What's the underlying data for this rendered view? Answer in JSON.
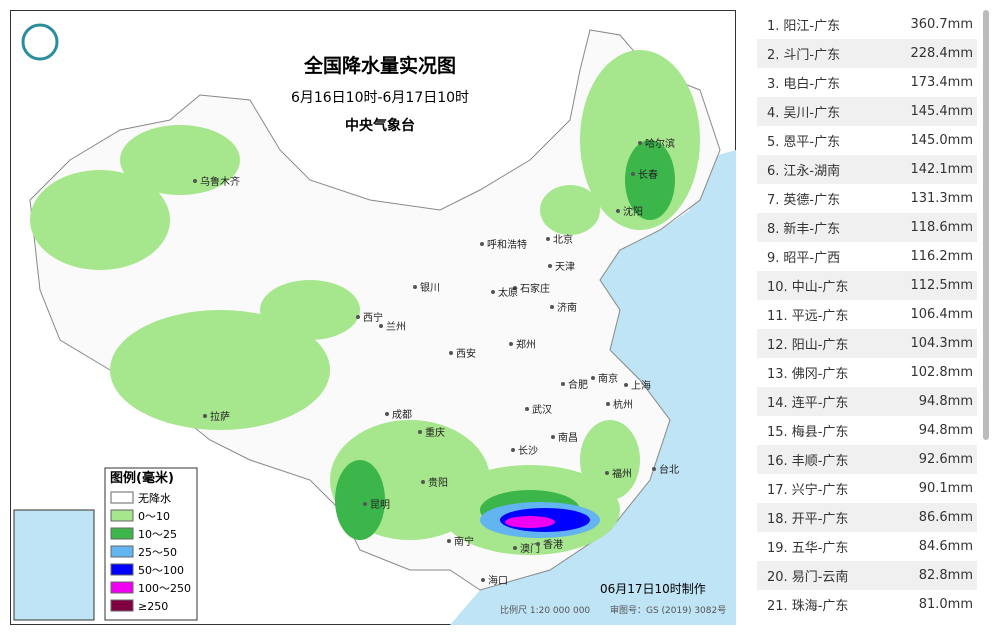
{
  "map": {
    "title": "全国降水量实况图",
    "subtitle": "6月16日10时-6月17日10时",
    "agency": "中央气象台",
    "cities": [
      "乌鲁木齐",
      "哈尔滨",
      "长春",
      "沈阳",
      "呼和浩特",
      "北京",
      "天津",
      "石家庄",
      "太原",
      "银川",
      "西宁",
      "兰州",
      "济南",
      "西安",
      "郑州",
      "合肥",
      "南京",
      "上海",
      "杭州",
      "拉萨",
      "成都",
      "重庆",
      "武汉",
      "南昌",
      "长沙",
      "福州",
      "台北",
      "贵阳",
      "昆明",
      "南宁",
      "澳门",
      "香港",
      "海口"
    ],
    "legend": {
      "title": "图例(毫米)",
      "items": [
        {
          "label": "无降水",
          "color": "#ffffff"
        },
        {
          "label": "0～10",
          "color": "#a6e68c"
        },
        {
          "label": "10～25",
          "color": "#3cb54a"
        },
        {
          "label": "25～50",
          "color": "#62b5f0"
        },
        {
          "label": "50～100",
          "color": "#0000ff"
        },
        {
          "label": "100～250",
          "color": "#f000f0"
        },
        {
          "label": "≥250",
          "color": "#800040"
        }
      ]
    },
    "made": "06月17日10时制作",
    "scale": "比例尺 1:20 000 000",
    "approval": "审图号：GS (2019) 3082号"
  },
  "ranking": {
    "rows": [
      [
        "1.",
        "阳江-广东",
        "360.7mm"
      ],
      [
        "2.",
        "斗门-广东",
        "228.4mm"
      ],
      [
        "3.",
        "电白-广东",
        "173.4mm"
      ],
      [
        "4.",
        "吴川-广东",
        "145.4mm"
      ],
      [
        "5.",
        "恩平-广东",
        "145.0mm"
      ],
      [
        "6.",
        "江永-湖南",
        "142.1mm"
      ],
      [
        "7.",
        "英德-广东",
        "131.3mm"
      ],
      [
        "8.",
        "新丰-广东",
        "118.6mm"
      ],
      [
        "9.",
        "昭平-广西",
        "116.2mm"
      ],
      [
        "10.",
        "中山-广东",
        "112.5mm"
      ],
      [
        "11.",
        "平远-广东",
        "106.4mm"
      ],
      [
        "12.",
        "阳山-广东",
        "104.3mm"
      ],
      [
        "13.",
        "佛冈-广东",
        "102.8mm"
      ],
      [
        "14.",
        "连平-广东",
        "94.8mm"
      ],
      [
        "15.",
        "梅县-广东",
        "94.8mm"
      ],
      [
        "16.",
        "丰顺-广东",
        "92.6mm"
      ],
      [
        "17.",
        "兴宁-广东",
        "90.1mm"
      ],
      [
        "18.",
        "开平-广东",
        "86.6mm"
      ],
      [
        "19.",
        "五华-广东",
        "84.6mm"
      ],
      [
        "20.",
        "易门-云南",
        "82.8mm"
      ],
      [
        "21.",
        "珠海-广东",
        "81.0mm"
      ]
    ]
  }
}
